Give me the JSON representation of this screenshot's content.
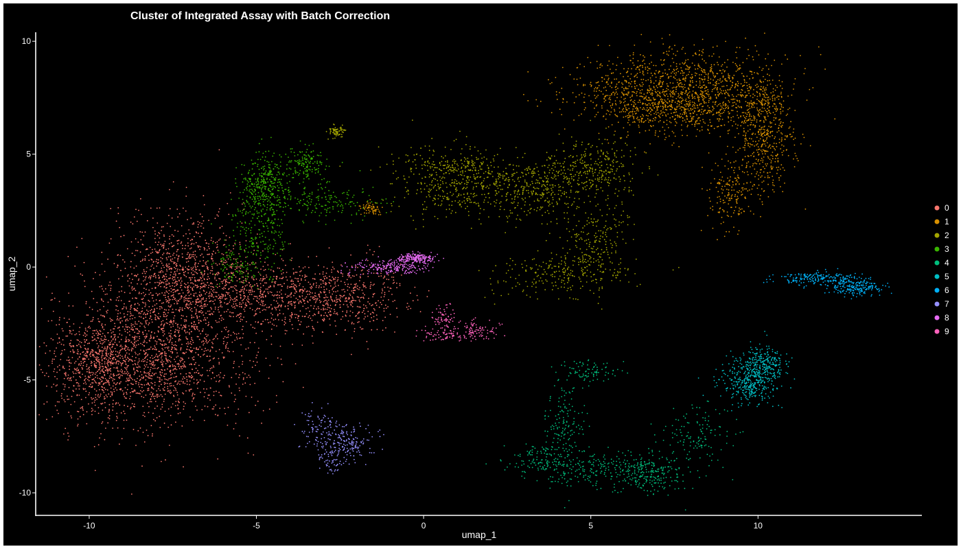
{
  "chart_data": {
    "type": "scatter",
    "title": "Cluster of Integrated Assay with Batch Correction",
    "xlabel": "umap_1",
    "ylabel": "umap_2",
    "xlim": [
      -11.6,
      14.9
    ],
    "ylim": [
      -11.0,
      10.4
    ],
    "xticks": [
      -10,
      -5,
      0,
      5,
      10
    ],
    "yticks": [
      -10,
      -5,
      0,
      5,
      10
    ],
    "grid": false,
    "legend_position": "right",
    "background": "#000000",
    "point_size": "small",
    "series": [
      {
        "name": "0",
        "color": "#F8766D",
        "approx_points": 9500,
        "regions": [
          {
            "cx": -8.2,
            "cy": -4.0,
            "sx": 1.5,
            "sy": 1.5,
            "w": 0.4
          },
          {
            "cx": -7.3,
            "cy": -0.3,
            "sx": 1.0,
            "sy": 1.4,
            "w": 0.22
          },
          {
            "cx": -5.5,
            "cy": -1.2,
            "sx": 1.1,
            "sy": 0.8,
            "w": 0.12
          },
          {
            "cx": -2.8,
            "cy": -1.3,
            "sx": 1.1,
            "sy": 0.8,
            "w": 0.16
          },
          {
            "cx": -9.8,
            "cy": -4.4,
            "sx": 0.6,
            "sy": 0.9,
            "w": 0.1
          }
        ]
      },
      {
        "name": "1",
        "color": "#D89000",
        "approx_points": 5200,
        "regions": [
          {
            "cx": 6.8,
            "cy": 7.8,
            "sx": 1.3,
            "sy": 0.9,
            "w": 0.3
          },
          {
            "cx": 8.7,
            "cy": 8.0,
            "sx": 1.1,
            "sy": 0.9,
            "w": 0.25
          },
          {
            "cx": 10.2,
            "cy": 6.0,
            "sx": 0.45,
            "sy": 1.2,
            "w": 0.22
          },
          {
            "cx": 9.2,
            "cy": 3.2,
            "sx": 0.35,
            "sy": 0.8,
            "w": 0.08
          },
          {
            "cx": 7.6,
            "cy": 7.0,
            "sx": 0.9,
            "sy": 0.5,
            "w": 0.12
          },
          {
            "cx": -1.6,
            "cy": 2.6,
            "sx": 0.15,
            "sy": 0.15,
            "w": 0.03
          }
        ]
      },
      {
        "name": "2",
        "color": "#A3A500",
        "approx_points": 3800,
        "regions": [
          {
            "cx": 0.8,
            "cy": 3.8,
            "sx": 0.9,
            "sy": 0.8,
            "w": 0.22
          },
          {
            "cx": 3.0,
            "cy": 3.5,
            "sx": 1.0,
            "sy": 0.7,
            "w": 0.24
          },
          {
            "cx": 5.0,
            "cy": 4.3,
            "sx": 0.7,
            "sy": 0.7,
            "w": 0.18
          },
          {
            "cx": 5.1,
            "cy": 1.2,
            "sx": 0.5,
            "sy": 0.9,
            "w": 0.14
          },
          {
            "cx": 4.2,
            "cy": -0.3,
            "sx": 1.0,
            "sy": 0.45,
            "w": 0.14
          },
          {
            "cx": -2.6,
            "cy": 6.0,
            "sx": 0.15,
            "sy": 0.15,
            "w": 0.04
          },
          {
            "cx": 1.0,
            "cy": 4.6,
            "sx": 0.5,
            "sy": 0.15,
            "w": 0.04
          }
        ]
      },
      {
        "name": "3",
        "color": "#39B600",
        "approx_points": 2200,
        "regions": [
          {
            "cx": -4.8,
            "cy": 3.6,
            "sx": 0.35,
            "sy": 0.7,
            "w": 0.35
          },
          {
            "cx": -5.0,
            "cy": 1.4,
            "sx": 0.45,
            "sy": 0.9,
            "w": 0.25
          },
          {
            "cx": -3.5,
            "cy": 4.5,
            "sx": 0.35,
            "sy": 0.35,
            "w": 0.15
          },
          {
            "cx": -3.0,
            "cy": 2.9,
            "sx": 0.8,
            "sy": 0.4,
            "w": 0.17
          },
          {
            "cx": -5.7,
            "cy": 0.0,
            "sx": 0.3,
            "sy": 0.4,
            "w": 0.08
          }
        ]
      },
      {
        "name": "4",
        "color": "#00BF7D",
        "approx_points": 2000,
        "regions": [
          {
            "cx": 4.2,
            "cy": -7.2,
            "sx": 0.3,
            "sy": 1.3,
            "w": 0.22
          },
          {
            "cx": 5.5,
            "cy": -8.9,
            "sx": 1.2,
            "sy": 0.35,
            "w": 0.28
          },
          {
            "cx": 6.8,
            "cy": -9.3,
            "sx": 0.5,
            "sy": 0.4,
            "w": 0.18
          },
          {
            "cx": 3.5,
            "cy": -8.5,
            "sx": 0.4,
            "sy": 0.35,
            "w": 0.1
          },
          {
            "cx": 4.9,
            "cy": -4.6,
            "sx": 0.5,
            "sy": 0.25,
            "w": 0.08
          },
          {
            "cx": 8.2,
            "cy": -7.5,
            "sx": 0.6,
            "sy": 0.7,
            "w": 0.14
          }
        ]
      },
      {
        "name": "5",
        "color": "#00BFC4",
        "approx_points": 1300,
        "regions": [
          {
            "cx": 9.8,
            "cy": -5.0,
            "sx": 0.45,
            "sy": 0.5,
            "w": 0.7
          },
          {
            "cx": 10.2,
            "cy": -4.2,
            "sx": 0.3,
            "sy": 0.4,
            "w": 0.3
          }
        ]
      },
      {
        "name": "6",
        "color": "#00B0F6",
        "approx_points": 900,
        "regions": [
          {
            "cx": 12.9,
            "cy": -0.9,
            "sx": 0.4,
            "sy": 0.18,
            "w": 0.55
          },
          {
            "cx": 11.8,
            "cy": -0.5,
            "sx": 0.6,
            "sy": 0.15,
            "w": 0.45
          }
        ]
      },
      {
        "name": "7",
        "color": "#9590FF",
        "approx_points": 700,
        "regions": [
          {
            "cx": -2.3,
            "cy": -7.8,
            "sx": 0.4,
            "sy": 0.4,
            "w": 0.55
          },
          {
            "cx": -3.1,
            "cy": -7.2,
            "sx": 0.3,
            "sy": 0.45,
            "w": 0.3
          },
          {
            "cx": -2.8,
            "cy": -8.6,
            "sx": 0.25,
            "sy": 0.3,
            "w": 0.15
          }
        ]
      },
      {
        "name": "8",
        "color": "#E76BF3",
        "approx_points": 900,
        "regions": [
          {
            "cx": -0.9,
            "cy": 0.0,
            "sx": 0.6,
            "sy": 0.15,
            "w": 0.6
          },
          {
            "cx": -0.2,
            "cy": 0.4,
            "sx": 0.3,
            "sy": 0.1,
            "w": 0.4
          }
        ]
      },
      {
        "name": "9",
        "color": "#FF62BC",
        "approx_points": 500,
        "regions": [
          {
            "cx": 1.6,
            "cy": -2.8,
            "sx": 0.35,
            "sy": 0.25,
            "w": 0.45
          },
          {
            "cx": 0.5,
            "cy": -3.0,
            "sx": 0.35,
            "sy": 0.15,
            "w": 0.3
          },
          {
            "cx": 0.6,
            "cy": -2.2,
            "sx": 0.2,
            "sy": 0.25,
            "w": 0.25
          }
        ]
      }
    ]
  }
}
